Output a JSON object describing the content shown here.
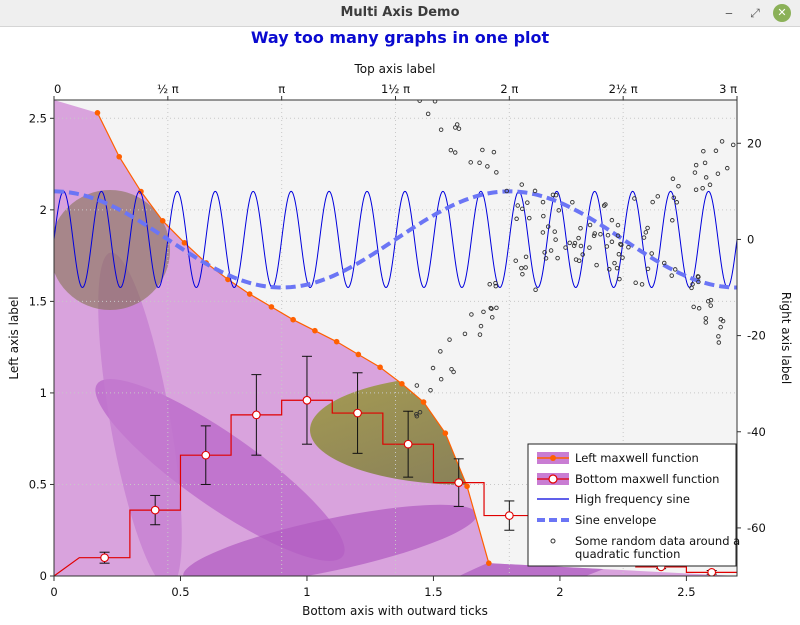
{
  "window": {
    "title": "Multi Axis Demo",
    "minimize_glyph": "‒",
    "restore_glyph": "⤢",
    "close_glyph": "✕"
  },
  "colors": {
    "title": "#0a0ad0",
    "maxwell_left": "#ff6000",
    "maxwell_bottom": "#e00000",
    "sine": "#0000dd",
    "envelope": "#6b75f5",
    "random": "#333333",
    "petal": "#c984d6",
    "center": "#8c8b3c"
  },
  "chart_data": {
    "type": "line",
    "title": "Way too many graphs in one plot",
    "axes": {
      "left": {
        "label": "Left axis label",
        "range": [
          0,
          2.6
        ],
        "ticks": [
          0,
          0.5,
          1,
          1.5,
          2,
          2.5
        ],
        "tick_labels": [
          "0",
          "0.5",
          "1",
          "1.5",
          "2",
          "2.5"
        ]
      },
      "bottom": {
        "label": "Bottom axis with outward ticks",
        "range": [
          0,
          2.7
        ],
        "ticks": [
          0,
          0.5,
          1,
          1.5,
          2,
          2.5
        ],
        "tick_labels": [
          "0",
          "0.5",
          "1",
          "1.5",
          "2",
          "2.5"
        ]
      },
      "top": {
        "label": "Top axis label",
        "range": [
          0,
          9.4248
        ],
        "ticks": [
          0,
          1.5708,
          3.1416,
          4.7124,
          6.2832,
          7.854,
          9.4248
        ],
        "tick_labels": [
          "0",
          "½ π",
          "π",
          "1½ π",
          "2 π",
          "2½ π",
          "3 π"
        ]
      },
      "right": {
        "label": "Right axis label",
        "range": [
          -70,
          29
        ],
        "ticks": [
          -60,
          -40,
          -20,
          0,
          20
        ],
        "tick_labels": [
          "-60",
          "-40",
          "-20",
          "0",
          "20"
        ]
      }
    },
    "grid": true,
    "legend_position": "bottom-right",
    "series": [
      {
        "name": "Left maxwell function",
        "axes": [
          "left",
          "bottom"
        ],
        "x": [
          0.6,
          0.9,
          1.2,
          1.5,
          1.8,
          2.1,
          2.4,
          2.7,
          3.0,
          3.3,
          3.6,
          3.9,
          4.2,
          4.5,
          4.8,
          5.1,
          5.4,
          5.7,
          6.0
        ],
        "y": [
          2.53,
          2.29,
          2.1,
          1.94,
          1.82,
          1.71,
          1.62,
          1.54,
          1.47,
          1.4,
          1.34,
          1.28,
          1.21,
          1.14,
          1.05,
          0.95,
          0.78,
          0.49,
          0.07
        ]
      },
      {
        "name": "Bottom maxwell function",
        "axes": [
          "left",
          "bottom"
        ],
        "x": [
          0.2,
          0.4,
          0.6,
          0.8,
          1.0,
          1.2,
          1.4,
          1.6,
          1.8,
          2.0,
          2.2,
          2.4,
          2.6
        ],
        "y": [
          0.1,
          0.36,
          0.66,
          0.88,
          0.96,
          0.89,
          0.72,
          0.51,
          0.33,
          0.19,
          0.1,
          0.05,
          0.02
        ],
        "error": [
          0.03,
          0.08,
          0.16,
          0.22,
          0.24,
          0.22,
          0.18,
          0.13,
          0.08,
          0.05,
          0.03,
          0.01,
          0.01
        ]
      },
      {
        "name": "High frequency sine",
        "axes": [
          "right",
          "top"
        ],
        "amplitude": 10,
        "cycles": 18
      },
      {
        "name": "Sine envelope",
        "axes": [
          "right",
          "top"
        ],
        "amplitude": 10,
        "period_x": 6.2832
      },
      {
        "name": "Some random data around a quadratic function",
        "axes": [
          "right",
          "top"
        ],
        "count": 150,
        "x_range": [
          5,
          9.4
        ]
      }
    ]
  }
}
